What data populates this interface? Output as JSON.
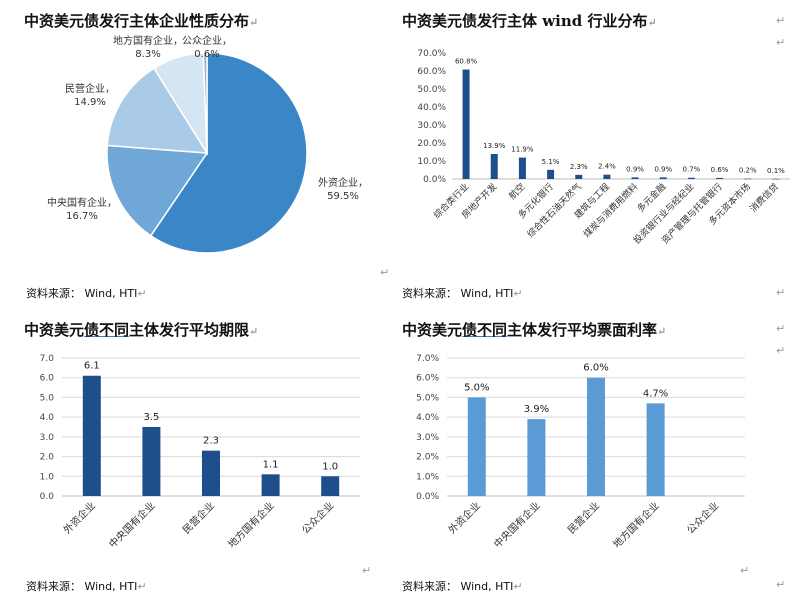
{
  "return_mark": "↵",
  "panels": [
    {
      "title": "中资美元债发行主体企业性质分布",
      "source": "资料来源： Wind, HTI"
    },
    {
      "title": "中资美元债发行主体 wind 行业分布",
      "source": "资料来源： Wind, HTI"
    },
    {
      "title_parts": [
        "中资美元",
        "债不同",
        "主体发行平均期限"
      ],
      "source": "资料来源： Wind, HTI"
    },
    {
      "title_parts": [
        "中资美元",
        "债不同",
        "主体发行平均票面利率"
      ],
      "source": "资料来源： Wind, HTI"
    }
  ],
  "chart_data": [
    {
      "type": "pie",
      "title": "中资美元债发行主体企业性质分布",
      "categories": [
        "外资企业",
        "中央国有企业",
        "民营企业",
        "地方国有企业",
        "公众企业"
      ],
      "values": [
        59.5,
        16.7,
        14.9,
        8.3,
        0.6
      ],
      "value_labels": [
        "59.5%",
        "16.7%",
        "14.9%",
        "8.3%",
        "0.6%"
      ],
      "colors": [
        "#3a86c7",
        "#6fa7d6",
        "#aacbe8",
        "#d4e5f4",
        "#9ab3cf"
      ]
    },
    {
      "type": "bar",
      "title": "中资美元债发行主体 wind 行业分布",
      "categories": [
        "综合类行业",
        "房地产开发",
        "航空",
        "多元化银行",
        "综合性石油天然气",
        "建筑与工程",
        "煤炭与消费用燃料",
        "多元金融",
        "投资银行业与经纪业",
        "资产管理与托管银行",
        "多元资本市场",
        "消费信贷"
      ],
      "values": [
        60.8,
        13.9,
        11.9,
        5.1,
        2.3,
        2.4,
        0.9,
        0.9,
        0.7,
        0.6,
        0.2,
        0.1
      ],
      "value_labels": [
        "60.8%",
        "13.9%",
        "11.9%",
        "5.1%",
        "2.3%",
        "2.4%",
        "0.9%",
        "0.9%",
        "0.7%",
        "0.6%",
        "0.2%",
        "0.1%"
      ],
      "yticks": [
        "0.0%",
        "10.0%",
        "20.0%",
        "30.0%",
        "40.0%",
        "50.0%",
        "60.0%",
        "70.0%"
      ],
      "ylim": [
        0,
        70
      ],
      "color": "#1f4e8c"
    },
    {
      "type": "bar",
      "title": "中资美元债不同主体发行平均期限",
      "categories": [
        "外资企业",
        "中央国有企业",
        "民营企业",
        "地方国有企业",
        "公众企业"
      ],
      "values": [
        6.1,
        3.5,
        2.3,
        1.1,
        1.0
      ],
      "value_labels": [
        "6.1",
        "3.5",
        "2.3",
        "1.1",
        "1.0"
      ],
      "yticks": [
        "0.0",
        "1.0",
        "2.0",
        "3.0",
        "4.0",
        "5.0",
        "6.0",
        "7.0"
      ],
      "ylim": [
        0,
        7
      ],
      "grid": true,
      "color": "#1f4e8c"
    },
    {
      "type": "bar",
      "title": "中资美元债不同主体发行平均票面利率",
      "categories": [
        "外资企业",
        "中央国有企业",
        "民营企业",
        "地方国有企业",
        "公众企业"
      ],
      "values": [
        5.0,
        3.9,
        6.0,
        4.7,
        0
      ],
      "value_labels": [
        "5.0%",
        "3.9%",
        "6.0%",
        "4.7%",
        ""
      ],
      "yticks": [
        "0.0%",
        "1.0%",
        "2.0%",
        "3.0%",
        "4.0%",
        "5.0%",
        "6.0%",
        "7.0%"
      ],
      "ylim": [
        0,
        7
      ],
      "grid": true,
      "color": "#5b9bd5"
    }
  ]
}
